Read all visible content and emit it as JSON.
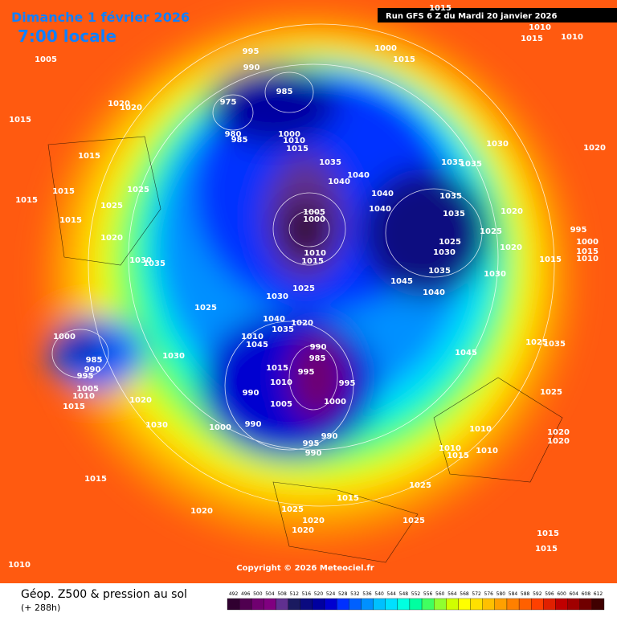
{
  "header": {
    "date": "Dimanche 1 février 2026",
    "time": "7:00 locale",
    "run": "Run GFS 6 Z du Mardi 20 janvier 2026"
  },
  "copyright": "Copyright © 2026 Meteociel.fr",
  "footer": {
    "title": "Géop. Z500 & pression au sol",
    "subtitle": "(+ 288h)"
  },
  "scale": {
    "values": [
      492,
      496,
      500,
      504,
      508,
      512,
      516,
      520,
      524,
      528,
      532,
      536,
      540,
      544,
      548,
      552,
      556,
      560,
      564,
      568,
      572,
      576,
      580,
      584,
      588,
      592,
      596,
      600,
      604,
      608,
      612
    ],
    "colors": [
      "#300030",
      "#500050",
      "#700070",
      "#800080",
      "#603090",
      "#1a1a60",
      "#0a0a80",
      "#0000a0",
      "#0000d0",
      "#0030ff",
      "#0060ff",
      "#0090ff",
      "#00c0ff",
      "#00e0ff",
      "#00ffe0",
      "#00ffa0",
      "#40ff60",
      "#90ff30",
      "#d0ff00",
      "#ffff00",
      "#ffe000",
      "#ffc000",
      "#ffa000",
      "#ff8000",
      "#ff6000",
      "#ff4000",
      "#e02000",
      "#c00000",
      "#a00000",
      "#700000",
      "#400000"
    ]
  },
  "pressure_labels": [
    1010,
    1010,
    1015,
    1015,
    1005,
    1000,
    1015,
    995,
    990,
    985,
    975,
    980,
    985,
    1020,
    1020,
    1015,
    1000,
    1010,
    1015,
    1035,
    1040,
    1040,
    1040,
    1040,
    1015,
    1025,
    1015,
    1015,
    1025,
    1015,
    1020,
    1005,
    1000,
    1035,
    1035,
    1035,
    1035,
    1030,
    1020,
    1020,
    1025,
    995,
    1025,
    1030,
    1020,
    1000,
    1015,
    1010,
    1015,
    1010,
    1015,
    1035,
    1045,
    1030,
    1040,
    1025,
    1030,
    1035,
    1030,
    1025,
    1040,
    1020,
    1035,
    1010,
    1045,
    990,
    985,
    995,
    1015,
    1010,
    995,
    990,
    1000,
    1005,
    990,
    1000,
    990,
    995,
    990,
    1000,
    985,
    990,
    995,
    1005,
    1010,
    1015,
    1020,
    1030,
    1030,
    1045,
    1025,
    1035,
    1025,
    1010,
    1010,
    1015,
    1010,
    1020,
    1020,
    1025,
    1015,
    1025,
    1020,
    1020,
    1025,
    1015,
    1020,
    1015,
    1015,
    1010
  ]
}
